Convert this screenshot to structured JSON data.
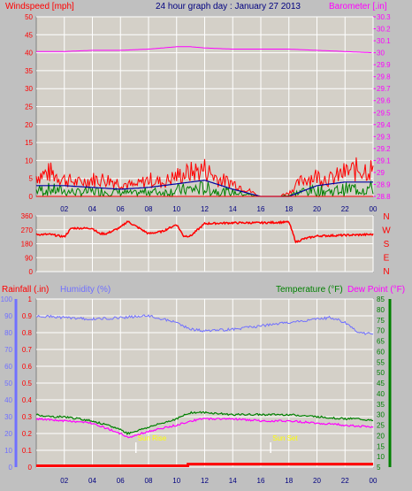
{
  "title": "24 hour graph day : January 27 2013",
  "colors": {
    "background": "#c0c0c0",
    "plot_bg": "#d4d0c8",
    "grid": "#ffffff",
    "wind": "#ff0000",
    "wind_avg": "#0000a0",
    "wind_low": "#008000",
    "barometer": "#ff00ff",
    "direction": "#ff0000",
    "rain": "#ff0000",
    "humidity": "#7070ff",
    "temperature": "#008000",
    "dewpoint": "#ff00ff",
    "sun": "#ffff00",
    "title": "#000080"
  },
  "chart_data": [
    {
      "type": "line",
      "panel": "wind-barometer",
      "legend": {
        "left": "Windspeed [mph]",
        "right": "Barometer [.in]"
      },
      "x_ticks": [
        "02",
        "04",
        "06",
        "08",
        "10",
        "12",
        "14",
        "16",
        "18",
        "20",
        "22",
        "00"
      ],
      "xlim": [
        0,
        24
      ],
      "y_left": {
        "range": [
          0,
          50
        ],
        "ticks": [
          "0",
          "5",
          "10",
          "15",
          "20",
          "25",
          "30",
          "35",
          "40",
          "45",
          "50"
        ]
      },
      "y_right": {
        "range": [
          28.8,
          30.3
        ],
        "ticks": [
          "28.8",
          "28.9",
          "29",
          "29.1",
          "29.2",
          "29.3",
          "29.4",
          "29.5",
          "29.6",
          "29.7",
          "29.8",
          "29.9",
          "30",
          "30.1",
          "30.2",
          "30.3"
        ]
      },
      "grid": true,
      "series": [
        {
          "name": "Windspeed",
          "axis": "left",
          "x": [
            0,
            1,
            2,
            3,
            4,
            5,
            6,
            7,
            8,
            9,
            10,
            11,
            12,
            13,
            14,
            15,
            16,
            17,
            18,
            19,
            20,
            21,
            22,
            23,
            24
          ],
          "values": [
            6,
            7,
            5,
            4,
            5,
            5,
            4,
            3,
            5,
            4,
            6,
            7,
            8,
            5,
            4,
            2,
            0,
            0,
            1,
            5,
            6,
            5,
            7,
            8,
            8
          ]
        },
        {
          "name": "Wind Avg",
          "axis": "left",
          "x": [
            0,
            2,
            4,
            6,
            8,
            10,
            12,
            14,
            16,
            18,
            20,
            22,
            24
          ],
          "values": [
            3,
            3,
            2.5,
            2,
            2.5,
            3.5,
            4.5,
            2,
            0,
            0,
            3,
            4,
            4
          ]
        },
        {
          "name": "Barometer",
          "axis": "right",
          "x": [
            0,
            2,
            4,
            6,
            8,
            10,
            11,
            12,
            14,
            16,
            18,
            20,
            22,
            24
          ],
          "values": [
            30.01,
            30.01,
            30.02,
            30.02,
            30.03,
            30.05,
            30.05,
            30.04,
            30.03,
            30.03,
            30.03,
            30.02,
            30.01,
            30.0
          ]
        }
      ]
    },
    {
      "type": "line",
      "panel": "wind-direction",
      "legend": {
        "right": [
          "N",
          "W",
          "S",
          "E",
          "N"
        ]
      },
      "x_ticks": [
        "02",
        "04",
        "06",
        "08",
        "10",
        "12",
        "14",
        "16",
        "18",
        "20",
        "22",
        "00"
      ],
      "xlim": [
        0,
        24
      ],
      "y_left": {
        "range": [
          0,
          360
        ],
        "ticks": [
          "0",
          "90",
          "180",
          "270",
          "360"
        ]
      },
      "grid": true,
      "series": [
        {
          "name": "Wind Direction",
          "x": [
            0,
            1,
            2,
            2.5,
            4,
            4.5,
            5,
            6,
            6.5,
            8,
            9,
            10,
            10.5,
            11,
            12,
            14,
            16,
            18,
            18.5,
            19,
            20,
            22,
            24
          ],
          "values": [
            240,
            240,
            225,
            280,
            280,
            245,
            245,
            285,
            325,
            245,
            260,
            305,
            230,
            230,
            310,
            315,
            315,
            320,
            190,
            210,
            230,
            235,
            240
          ]
        }
      ]
    },
    {
      "type": "line",
      "panel": "rain-humidity-temperature",
      "legend": {
        "left_a": "Rainfall (.in)",
        "left_b": "Humidity (%)",
        "right_a": "Temperature (°F)",
        "right_b": "Dew Point (°F)"
      },
      "x_ticks": [
        "02",
        "04",
        "06",
        "08",
        "10",
        "12",
        "14",
        "16",
        "18",
        "20",
        "22",
        "00"
      ],
      "xlim": [
        0,
        24
      ],
      "y_rain": {
        "range": [
          0,
          1
        ],
        "ticks": [
          "0",
          "0.1",
          "0.2",
          "0.3",
          "0.4",
          "0.5",
          "0.6",
          "0.7",
          "0.8",
          "0.9",
          "1"
        ]
      },
      "y_humidity": {
        "range": [
          0,
          100
        ],
        "ticks": [
          "0",
          "10",
          "20",
          "30",
          "40",
          "50",
          "60",
          "70",
          "80",
          "90",
          "100"
        ]
      },
      "y_temp": {
        "range": [
          5,
          85
        ],
        "ticks": [
          "5",
          "10",
          "15",
          "20",
          "25",
          "30",
          "35",
          "40",
          "45",
          "50",
          "55",
          "60",
          "65",
          "70",
          "75",
          "80",
          "85"
        ]
      },
      "grid": true,
      "sun_labels": [
        "Sun Rise",
        "Sun Set"
      ],
      "series": [
        {
          "name": "Humidity",
          "axis": "humidity",
          "x": [
            0,
            2,
            4,
            6,
            8,
            10,
            11,
            12,
            14,
            16,
            18,
            20,
            21,
            22,
            23,
            24
          ],
          "values": [
            90,
            89,
            88,
            89,
            90,
            86,
            82,
            81,
            82,
            84,
            86,
            88,
            89,
            86,
            80,
            79
          ]
        },
        {
          "name": "Temperature",
          "axis": "temp",
          "x": [
            0,
            1,
            2,
            4,
            6,
            6.5,
            7,
            8,
            10,
            11,
            12,
            14,
            16,
            18,
            20,
            22,
            23,
            24
          ],
          "values": [
            30,
            29,
            29,
            27,
            23,
            21,
            22,
            24,
            28,
            31,
            31,
            30,
            30,
            30,
            29,
            28,
            28,
            27
          ]
        },
        {
          "name": "Dew Point",
          "axis": "temp",
          "x": [
            0,
            2,
            4,
            6,
            6.5,
            7,
            8,
            10,
            11,
            12,
            14,
            16,
            18,
            20,
            22,
            24
          ],
          "values": [
            28,
            27,
            26,
            21,
            19,
            20,
            22,
            25,
            27,
            28,
            28,
            27,
            27,
            26,
            25,
            24
          ]
        },
        {
          "name": "Rainfall",
          "axis": "rain",
          "x": [
            0,
            10.8,
            10.81,
            24
          ],
          "values": [
            0,
            0,
            0.01,
            0.01
          ]
        }
      ],
      "events": [
        {
          "label": "Sun Rise",
          "x": 7.1
        },
        {
          "label": "Sun Set",
          "x": 16.7
        }
      ]
    }
  ]
}
